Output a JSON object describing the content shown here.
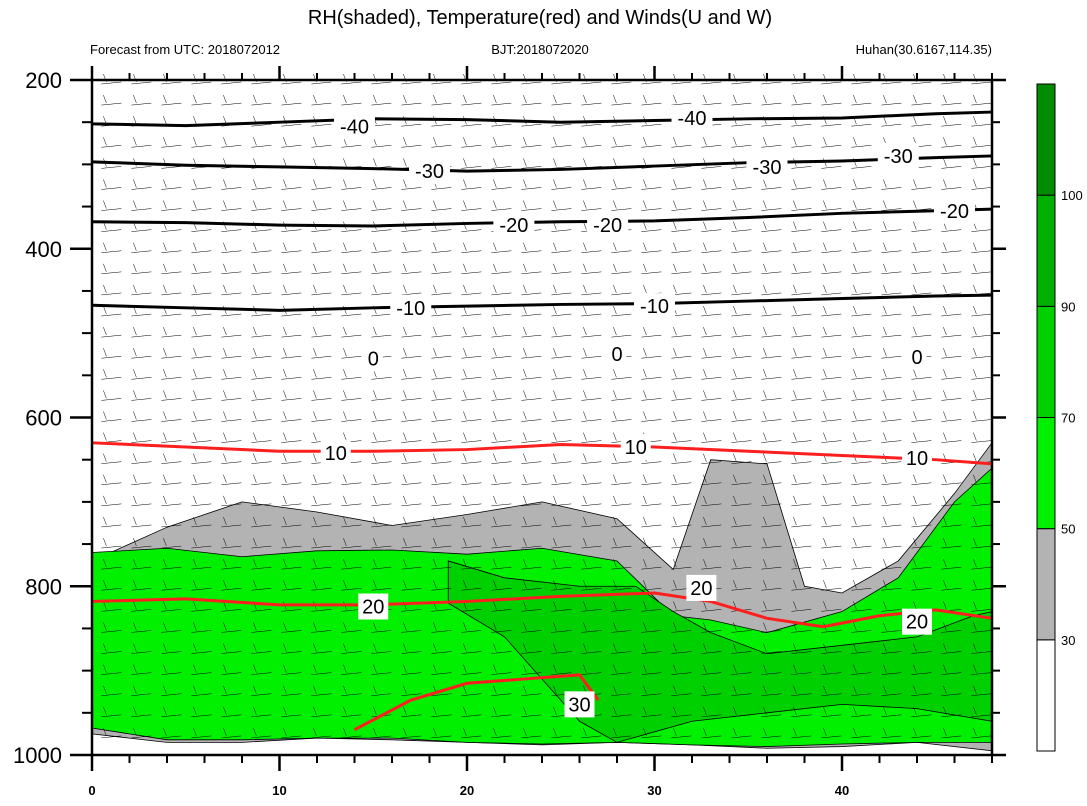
{
  "chart_data": {
    "type": "heatmap",
    "title": "RH(shaded), Temperature(red) and Winds(U and W)",
    "subtitle_left": "Forecast from UTC: 2018072012",
    "subtitle_center": "BJT:2018072020",
    "subtitle_right": "Huhan(30.6167,114.35)",
    "xlabel": "",
    "ylabel": "",
    "x_range": [
      0,
      48
    ],
    "y_range": [
      200,
      1000
    ],
    "y_reversed": true,
    "x_ticks": [
      0,
      10,
      20,
      30,
      40
    ],
    "x_tick_labels": [
      "0",
      "10",
      "20",
      "30",
      "40"
    ],
    "y_ticks": [
      200,
      400,
      600,
      800,
      1000
    ],
    "y_tick_labels": [
      "200",
      "400",
      "600",
      "800",
      "1000"
    ],
    "colorbar": {
      "levels": [
        30,
        50,
        70,
        90,
        100
      ],
      "labels": [
        "30",
        "50",
        "70",
        "90",
        "100"
      ],
      "colors": [
        "#ffffff",
        "#b3b3b3",
        "#00f000",
        "#00d000",
        "#00b000",
        "#008b00"
      ]
    },
    "shading_colors": {
      "rh_30_50": "#b3b3b3",
      "rh_50_70": "#00f000",
      "rh_70_90": "#00d000"
    },
    "series": [
      {
        "name": "rh_30_50",
        "label": "30–50",
        "x": [
          0,
          4,
          8,
          12,
          16,
          20,
          24,
          28,
          31,
          33,
          36,
          38,
          40,
          43,
          46,
          48,
          48,
          44,
          40,
          36,
          32,
          28,
          24,
          20,
          16,
          12,
          8,
          4,
          0
        ],
        "y": [
          770,
          730,
          700,
          712,
          728,
          715,
          700,
          720,
          780,
          650,
          655,
          800,
          808,
          770,
          690,
          630,
          995,
          985,
          990,
          992,
          988,
          985,
          988,
          985,
          982,
          980,
          985,
          985,
          975
        ]
      },
      {
        "name": "rh_50_70",
        "label": "50–70",
        "x": [
          0,
          4,
          8,
          12,
          16,
          20,
          24,
          28,
          31,
          33,
          36,
          40,
          43,
          46,
          48,
          48,
          44,
          40,
          36,
          32,
          28,
          24,
          20,
          16,
          12,
          8,
          4,
          0
        ],
        "y": [
          760,
          755,
          765,
          758,
          757,
          762,
          755,
          770,
          835,
          840,
          855,
          830,
          790,
          700,
          660,
          985,
          985,
          987,
          990,
          988,
          985,
          987,
          985,
          980,
          980,
          982,
          982,
          968
        ]
      },
      {
        "name": "rh_70_90",
        "label": "70–90",
        "x": [
          19,
          22,
          26,
          29,
          31,
          33,
          36,
          40,
          44,
          47,
          48,
          48,
          44,
          40,
          36,
          32,
          28,
          26,
          22,
          19
        ],
        "y": [
          770,
          790,
          800,
          800,
          830,
          855,
          880,
          870,
          860,
          835,
          830,
          960,
          945,
          940,
          950,
          960,
          985,
          960,
          860,
          820
        ]
      },
      {
        "name": "temp_-40",
        "label": "-40",
        "x": [
          0,
          5,
          10,
          15,
          20,
          25,
          30,
          35,
          40,
          45,
          48
        ],
        "y": [
          252,
          254,
          250,
          246,
          247,
          250,
          248,
          246,
          245,
          240,
          238
        ]
      },
      {
        "name": "temp_-30",
        "label": "-30",
        "x": [
          0,
          5,
          10,
          15,
          20,
          25,
          30,
          35,
          40,
          45,
          48
        ],
        "y": [
          297,
          301,
          303,
          305,
          308,
          306,
          302,
          298,
          296,
          292,
          290
        ]
      },
      {
        "name": "temp_-20",
        "label": "-20",
        "x": [
          0,
          5,
          10,
          15,
          20,
          25,
          30,
          35,
          40,
          45,
          48
        ],
        "y": [
          368,
          369,
          372,
          373,
          370,
          368,
          367,
          363,
          358,
          355,
          353
        ]
      },
      {
        "name": "temp_-10",
        "label": "-10",
        "x": [
          0,
          5,
          10,
          15,
          20,
          25,
          30,
          35,
          40,
          45,
          48
        ],
        "y": [
          467,
          470,
          473,
          470,
          468,
          466,
          465,
          462,
          459,
          456,
          455
        ]
      },
      {
        "name": "temp_10",
        "label": "10",
        "x": [
          0,
          5,
          10,
          15,
          20,
          25,
          30,
          35,
          40,
          45,
          48
        ],
        "y": [
          630,
          635,
          640,
          640,
          638,
          632,
          635,
          640,
          645,
          650,
          655
        ]
      },
      {
        "name": "temp_20",
        "label": "20",
        "x": [
          0,
          5,
          10,
          15,
          20,
          25,
          30,
          33,
          36,
          39,
          42,
          45,
          48
        ],
        "y": [
          818,
          815,
          822,
          822,
          818,
          812,
          808,
          818,
          838,
          848,
          835,
          828,
          838
        ]
      },
      {
        "name": "temp_30",
        "label": "30",
        "x": [
          14,
          17,
          20,
          23,
          26,
          27
        ],
        "y": [
          970,
          935,
          915,
          910,
          905,
          935
        ]
      }
    ],
    "temperature_labels": [
      {
        "value": "-40",
        "x": 14,
        "y": 255
      },
      {
        "value": "-40",
        "x": 32,
        "y": 245
      },
      {
        "value": "-30",
        "x": 18,
        "y": 308
      },
      {
        "value": "-30",
        "x": 36,
        "y": 303
      },
      {
        "value": "-30",
        "x": 43,
        "y": 290
      },
      {
        "value": "-20",
        "x": 22.5,
        "y": 372
      },
      {
        "value": "-20",
        "x": 27.5,
        "y": 372
      },
      {
        "value": "-20",
        "x": 46,
        "y": 355
      },
      {
        "value": "-10",
        "x": 17,
        "y": 470
      },
      {
        "value": "-10",
        "x": 30,
        "y": 468
      },
      {
        "value": "0",
        "x": 15,
        "y": 530
      },
      {
        "value": "0",
        "x": 28,
        "y": 525
      },
      {
        "value": "0",
        "x": 44,
        "y": 528
      },
      {
        "value": "10",
        "x": 13,
        "y": 642
      },
      {
        "value": "10",
        "x": 29,
        "y": 635
      },
      {
        "value": "10",
        "x": 44,
        "y": 648
      },
      {
        "value": "20",
        "x": 15,
        "y": 824
      },
      {
        "value": "20",
        "x": 32.5,
        "y": 802
      },
      {
        "value": "20",
        "x": 44,
        "y": 842
      },
      {
        "value": "30",
        "x": 26,
        "y": 940
      }
    ]
  }
}
